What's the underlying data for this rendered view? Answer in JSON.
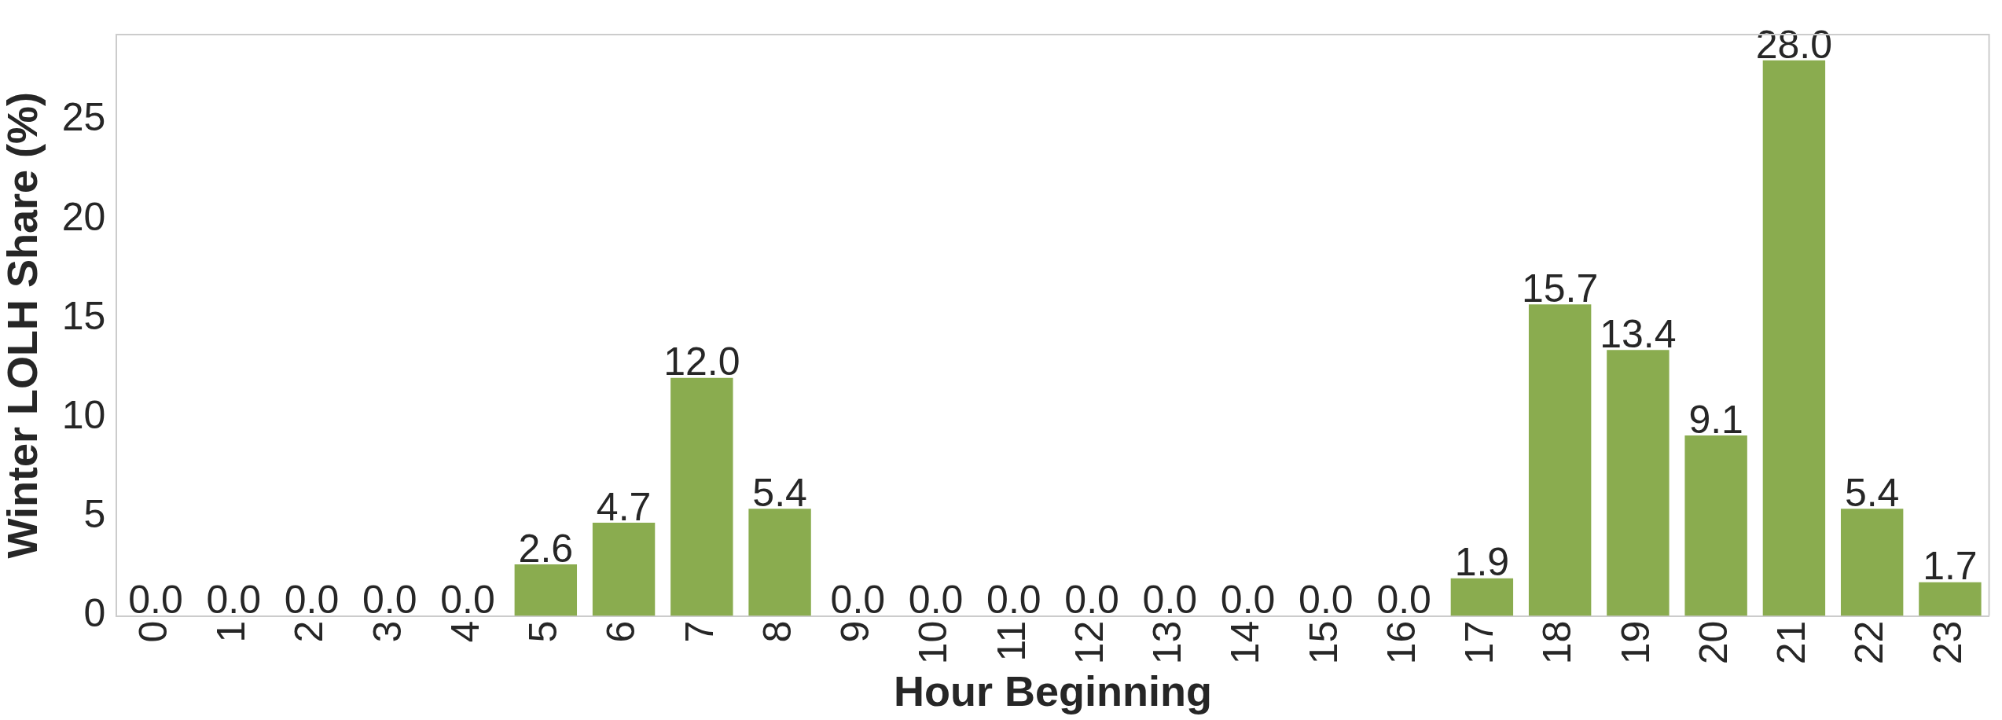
{
  "chart_data": {
    "type": "bar",
    "xlabel": "Hour Beginning",
    "ylabel": "Winter LOLH Share (%)",
    "categories": [
      "0",
      "1",
      "2",
      "3",
      "4",
      "5",
      "6",
      "7",
      "8",
      "9",
      "10",
      "11",
      "12",
      "13",
      "14",
      "15",
      "16",
      "17",
      "18",
      "19",
      "20",
      "21",
      "22",
      "23"
    ],
    "values": [
      0,
      0,
      0,
      0,
      0,
      2.6,
      4.7,
      12,
      5.4,
      0,
      0,
      0,
      0,
      0,
      0,
      0,
      0,
      1.9,
      15.7,
      13.4,
      9.1,
      28,
      5.4,
      1.7
    ],
    "value_labels": [
      "0.0",
      "0.0",
      "0.0",
      "0.0",
      "0.0",
      "2.6",
      "4.7",
      "12.0",
      "5.4",
      "0.0",
      "0.0",
      "0.0",
      "0.0",
      "0.0",
      "0.0",
      "0.0",
      "0.0",
      "1.9",
      "15.7",
      "13.4",
      "9.1",
      "28.0",
      "5.4",
      "1.7"
    ],
    "color": "#8aac4f",
    "ylim": [
      0,
      29.3
    ],
    "yticks": [
      0,
      5,
      10,
      15,
      20,
      25
    ],
    "grid": false,
    "legend": false
  }
}
